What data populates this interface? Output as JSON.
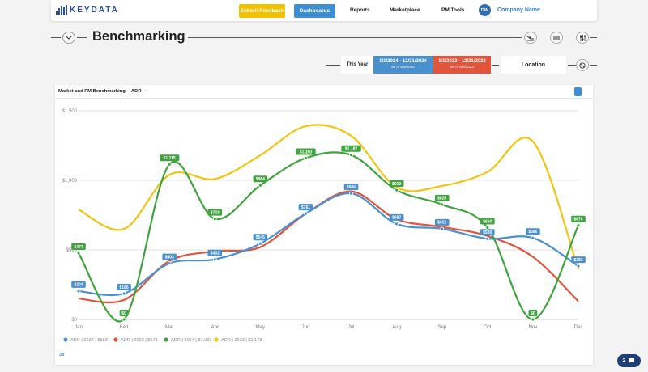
{
  "brand": {
    "name": "KEYDATA"
  },
  "nav": {
    "feedback_label": "Submit Feedback",
    "items": [
      "Dashboards",
      "Reports",
      "Marketplace",
      "PM Tools"
    ],
    "avatar_initials": "DW",
    "company": "Company Name"
  },
  "page": {
    "title": "Benchmarking"
  },
  "filters": {
    "this_year": "This Year",
    "range_a": {
      "dates": "1/1/2024 - 12/31/2024",
      "asof": "as of 5/9/2024",
      "color": "#4a90cf"
    },
    "range_b": {
      "dates": "1/1/2023 - 12/31/2023",
      "asof": "as of 5/9/2023",
      "color": "#e2543c"
    },
    "location": "Location"
  },
  "card": {
    "title": "Market and PM Benchmarking:",
    "metric": "ADR",
    "footer_link": "38"
  },
  "help": {
    "count": "2"
  },
  "chart_data": {
    "type": "line",
    "categories": [
      "Jan",
      "Feb",
      "Mar",
      "Apr",
      "May",
      "Jun",
      "Jul",
      "Aug",
      "Sep",
      "Oct",
      "Nov",
      "Dec"
    ],
    "y_ticks": [
      "$0",
      "$500",
      "$1,000",
      "$1,500"
    ],
    "ylim": [
      0,
      1500
    ],
    "series": [
      {
        "name": "ADR | 2024 | $583",
        "color": "#4a90cf",
        "values": [
          204,
          186,
          403,
          432,
          545,
          761,
          906,
          687,
          652,
          580,
          586,
          383
        ],
        "labels": [
          "$204",
          "$186",
          "$403",
          "$432",
          "$545",
          "$761",
          "$906",
          "$687",
          "$652",
          "$580",
          "$586",
          "$383"
        ]
      },
      {
        "name": "ADR | 2023 | $571",
        "color": "#e2543c",
        "values": [
          150,
          140,
          420,
          490,
          520,
          760,
          920,
          720,
          665,
          600,
          450,
          130
        ]
      },
      {
        "name": "ADR | 2024 | $1,033",
        "color": "#3fa33f",
        "values": [
          477,
          0,
          1115,
          723,
          964,
          1160,
          1182,
          930,
          826,
          660,
          0,
          676
        ],
        "labels": [
          "$477",
          "$0",
          "$1,115",
          "$723",
          "$964",
          "$1,160",
          "$1,182",
          "$930",
          "$826",
          "$660",
          "$0",
          "$676"
        ]
      },
      {
        "name": "ADR | 2023 | $1,178",
        "color": "#f1c40f",
        "values": [
          790,
          650,
          1040,
          1010,
          1180,
          1390,
          1320,
          950,
          960,
          1060,
          1280,
          360
        ]
      }
    ]
  }
}
